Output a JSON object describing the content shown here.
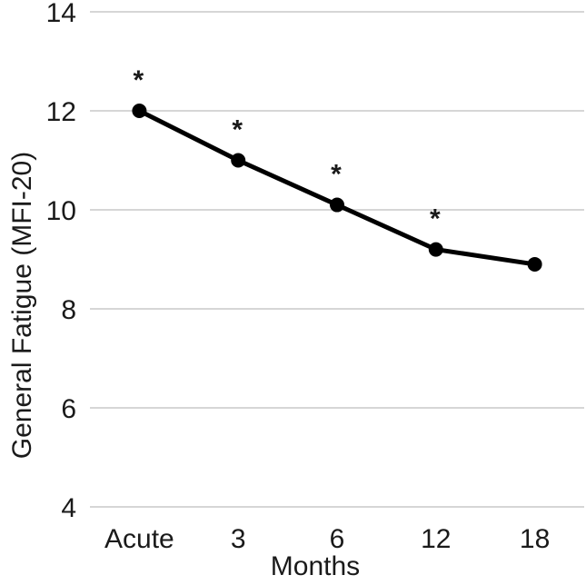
{
  "chart_data": {
    "type": "line",
    "categories": [
      "Acute",
      "3",
      "6",
      "12",
      "18"
    ],
    "series": [
      {
        "name": "General Fatigue (MFI-20)",
        "values": [
          12.0,
          11.0,
          10.1,
          9.2,
          8.9
        ]
      }
    ],
    "significance_markers": [
      "*",
      "*",
      "*",
      "*",
      ""
    ],
    "title": "",
    "xlabel": "Months",
    "ylabel": "General Fatigue (MFI-20)",
    "ylim": [
      4,
      14
    ],
    "yticks": [
      4,
      6,
      8,
      10,
      12,
      14
    ],
    "grid": true,
    "legend": "none",
    "marker": "circle",
    "line_color": "#000000",
    "text_color": "#1a1a1a",
    "grid_color": "#d6d6d6",
    "background": "#ffffff"
  }
}
